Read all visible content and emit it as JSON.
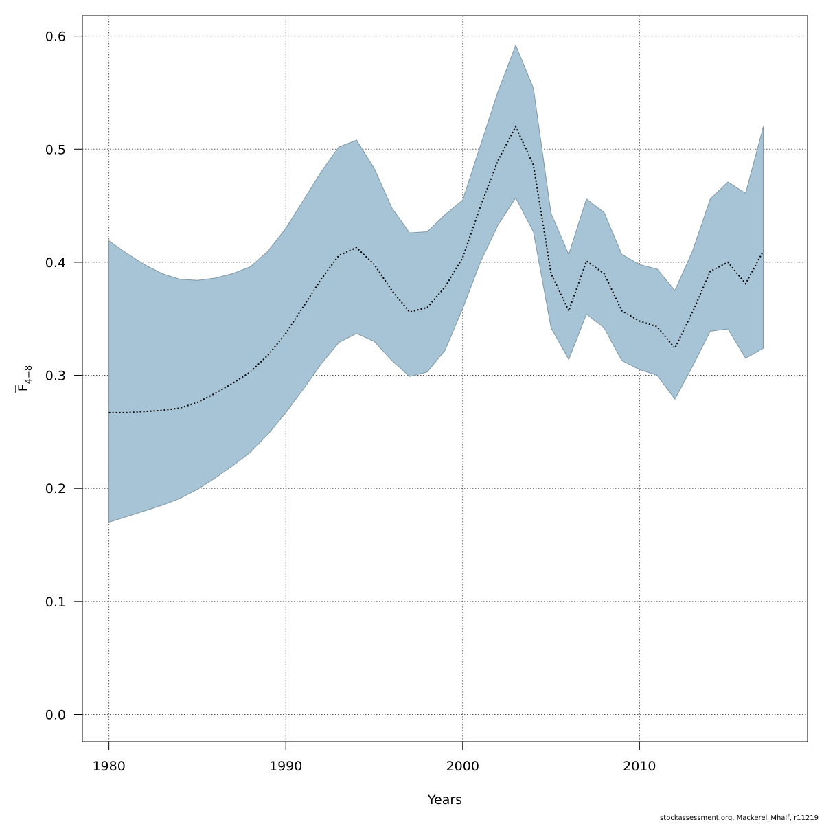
{
  "chart_data": {
    "type": "area",
    "xlabel": "Years",
    "ylabel": {
      "main": "F",
      "subscript": "4−8"
    },
    "xlim": [
      1978.5,
      2019.5
    ],
    "ylim": [
      -0.024,
      0.618
    ],
    "xticks": [
      1980,
      1990,
      2000,
      2010
    ],
    "yticks": [
      0.0,
      0.1,
      0.2,
      0.3,
      0.4,
      0.5,
      0.6
    ],
    "ytick_labels": [
      "0.0",
      "0.1",
      "0.2",
      "0.3",
      "0.4",
      "0.5",
      "0.6"
    ],
    "grid": true,
    "x": [
      1980,
      1981,
      1982,
      1983,
      1984,
      1985,
      1986,
      1987,
      1988,
      1989,
      1990,
      1991,
      1992,
      1993,
      1994,
      1995,
      1996,
      1997,
      1998,
      1999,
      2000,
      2001,
      2002,
      2003,
      2004,
      2005,
      2006,
      2007,
      2008,
      2009,
      2010,
      2011,
      2012,
      2013,
      2014,
      2015,
      2016,
      2017
    ],
    "series": [
      {
        "name": "",
        "role": "estimate",
        "style": "dotted-line",
        "values": [
          0.267,
          0.267,
          0.268,
          0.269,
          0.271,
          0.276,
          0.284,
          0.293,
          0.303,
          0.318,
          0.337,
          0.361,
          0.385,
          0.406,
          0.413,
          0.398,
          0.375,
          0.356,
          0.36,
          0.378,
          0.404,
          0.449,
          0.49,
          0.52,
          0.486,
          0.39,
          0.357,
          0.401,
          0.39,
          0.357,
          0.348,
          0.343,
          0.324,
          0.356,
          0.392,
          0.4,
          0.381,
          0.41
        ]
      },
      {
        "name": "",
        "role": "upper",
        "style": "band",
        "values": [
          0.419,
          0.408,
          0.398,
          0.39,
          0.385,
          0.384,
          0.386,
          0.39,
          0.396,
          0.41,
          0.43,
          0.455,
          0.48,
          0.502,
          0.508,
          0.483,
          0.448,
          0.426,
          0.427,
          0.442,
          0.455,
          0.503,
          0.551,
          0.592,
          0.554,
          0.443,
          0.407,
          0.456,
          0.444,
          0.407,
          0.398,
          0.394,
          0.375,
          0.41,
          0.456,
          0.471,
          0.461,
          0.52
        ]
      },
      {
        "name": "",
        "role": "lower",
        "style": "band",
        "values": [
          0.17,
          0.175,
          0.18,
          0.185,
          0.191,
          0.199,
          0.209,
          0.22,
          0.232,
          0.248,
          0.267,
          0.288,
          0.31,
          0.329,
          0.337,
          0.33,
          0.313,
          0.299,
          0.303,
          0.322,
          0.359,
          0.4,
          0.433,
          0.457,
          0.427,
          0.342,
          0.314,
          0.354,
          0.342,
          0.313,
          0.305,
          0.3,
          0.279,
          0.308,
          0.339,
          0.341,
          0.315,
          0.324
        ]
      }
    ],
    "colors": {
      "band": "#a6c4d5",
      "band_edge": "#7d96a3",
      "line": "#000000",
      "grid": "#555555"
    }
  },
  "footer": "stockassessment.org, Mackerel_Mhalf, r11219"
}
